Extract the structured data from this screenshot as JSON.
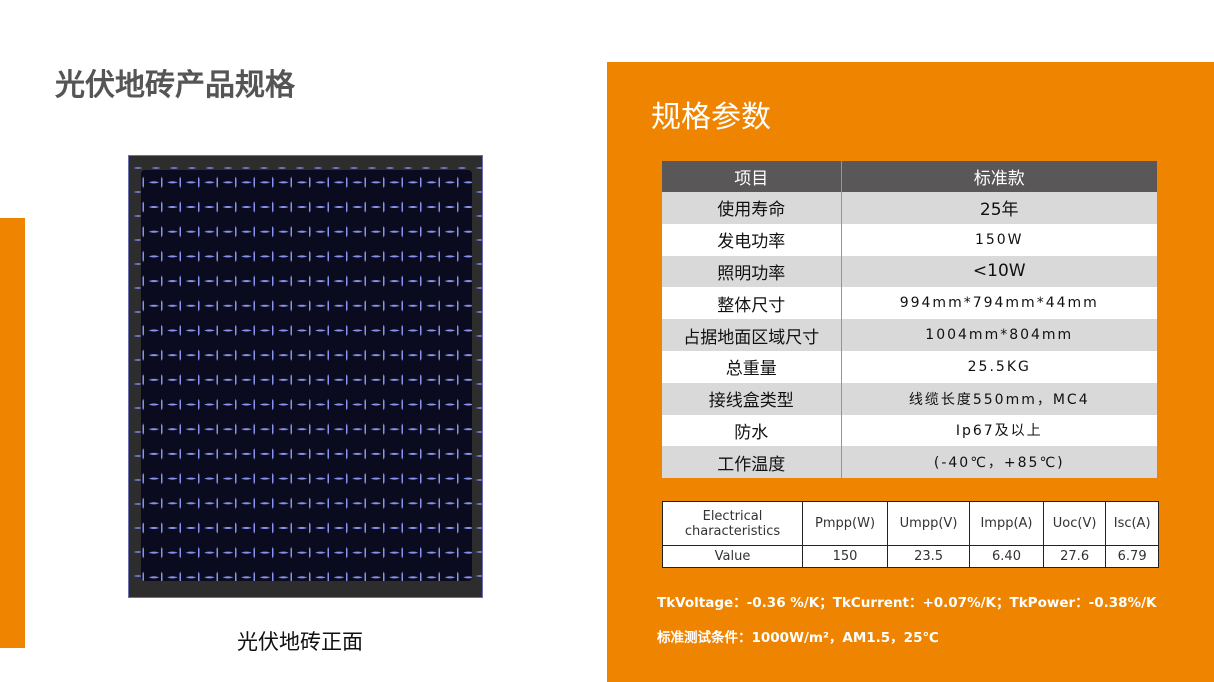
{
  "title": "光伏地砖产品规格",
  "caption": "光伏地砖正面",
  "colors": {
    "accent": "#ef8400",
    "header": "#595757"
  },
  "specs": {
    "title": "规格参数",
    "header": [
      "项目",
      "标准款"
    ],
    "rows": [
      [
        "使用寿命",
        "25年"
      ],
      [
        "发电功率",
        "150W"
      ],
      [
        "照明功率",
        "<10W"
      ],
      [
        "整体尺寸",
        "994mm*794mm*44mm"
      ],
      [
        "占据地面区域尺寸",
        "1004mm*804mm"
      ],
      [
        "总重量",
        "25.5KG"
      ],
      [
        "接线盒类型",
        "线缆长度550mm，MC4"
      ],
      [
        "防水",
        "Ip67及以上"
      ],
      [
        "工作温度",
        "(-40℃，+85℃)"
      ]
    ]
  },
  "electrical": {
    "header": [
      "Electrical characteristics",
      "Pmpp(W)",
      "Umpp(V)",
      "Impp(A)",
      "Uoc(V)",
      "Isc(A)"
    ],
    "values": [
      "Value",
      "150",
      "23.5",
      "6.40",
      "27.6",
      "6.79"
    ]
  },
  "notes": [
    "TkVoltage：-0.36 %/K；TkCurrent：+0.07%/K；TkPower：-0.38%/K",
    "标准测试条件：1000W/m²，AM1.5，25℃"
  ]
}
